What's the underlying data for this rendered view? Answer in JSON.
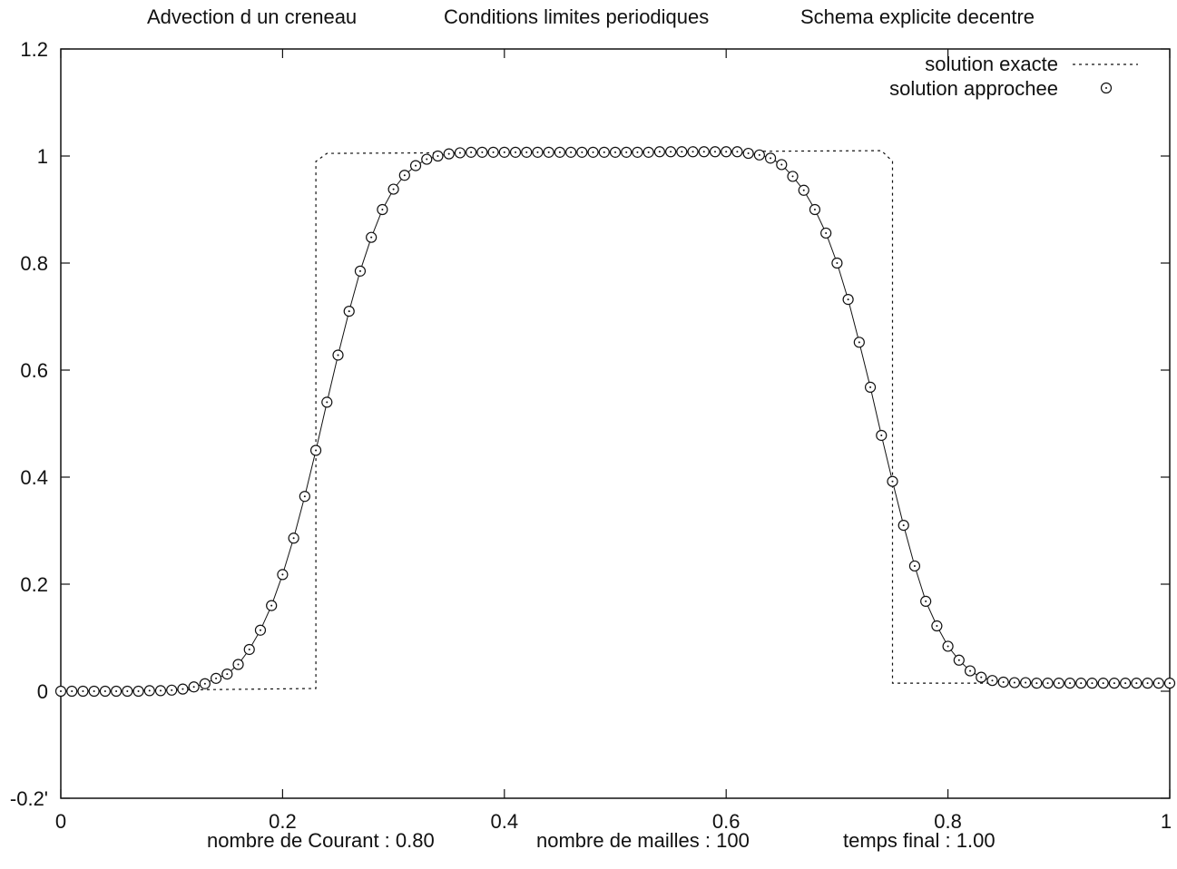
{
  "title_parts": [
    "Advection d un creneau",
    "Conditions limites periodiques",
    "Schema  explicite decentre"
  ],
  "info": {
    "courant_label": "nombre de Courant :",
    "courant_value": "0.80",
    "mailles_label": "nombre de mailles :",
    "mailles_value": "100",
    "temps_label": "temps final  :",
    "temps_value": "1.00"
  },
  "chart_data": {
    "type": "line",
    "xlim": [
      0,
      1
    ],
    "ylim": [
      -0.2,
      1.2
    ],
    "x_ticks": [
      0,
      0.2,
      0.4,
      0.6,
      0.8,
      1
    ],
    "x_tick_labels": [
      "0",
      "0.2",
      "0.4",
      "0.6",
      "0.8",
      "1"
    ],
    "y_ticks": [
      -0.2,
      0,
      0.2,
      0.4,
      0.6,
      0.8,
      1,
      1.2
    ],
    "y_tick_labels": [
      "-0.2'",
      "0",
      "0.2",
      "0.4",
      "0.6",
      "0.8",
      "1",
      "1.2"
    ],
    "grid": false,
    "legend_position": "top-right",
    "colors": {
      "line": "#111111",
      "marker": "#111111"
    },
    "series": [
      {
        "name": "solution exacte",
        "style": "dotted",
        "x": [
          0,
          0.23,
          0.23,
          0.24,
          0.74,
          0.75,
          0.75,
          1
        ],
        "y": [
          0,
          0.005,
          0.99,
          1.005,
          1.01,
          0.99,
          0.015,
          0.015
        ]
      },
      {
        "name": "solution approchee",
        "style": "markers-circle",
        "x": [
          0,
          0.01,
          0.02,
          0.03,
          0.04,
          0.05,
          0.06,
          0.07,
          0.08,
          0.09,
          0.1,
          0.11,
          0.12,
          0.13,
          0.14,
          0.15,
          0.16,
          0.17,
          0.18,
          0.19,
          0.2,
          0.21,
          0.22,
          0.23,
          0.24,
          0.25,
          0.26,
          0.27,
          0.28,
          0.29,
          0.3,
          0.31,
          0.32,
          0.33,
          0.34,
          0.35,
          0.36,
          0.37,
          0.38,
          0.39,
          0.4,
          0.41,
          0.42,
          0.43,
          0.44,
          0.45,
          0.46,
          0.47,
          0.48,
          0.49,
          0.5,
          0.51,
          0.52,
          0.53,
          0.54,
          0.55,
          0.56,
          0.57,
          0.58,
          0.59,
          0.6,
          0.61,
          0.62,
          0.63,
          0.64,
          0.65,
          0.66,
          0.67,
          0.68,
          0.69,
          0.7,
          0.71,
          0.72,
          0.73,
          0.74,
          0.75,
          0.76,
          0.77,
          0.78,
          0.79,
          0.8,
          0.81,
          0.82,
          0.83,
          0.84,
          0.85,
          0.86,
          0.87,
          0.88,
          0.89,
          0.9,
          0.91,
          0.92,
          0.93,
          0.94,
          0.95,
          0.96,
          0.97,
          0.98,
          0.99,
          1
        ],
        "y": [
          0,
          0,
          0,
          0,
          0,
          0,
          0,
          0,
          0.001,
          0.001,
          0.002,
          0.004,
          0.008,
          0.014,
          0.024,
          0.032,
          0.05,
          0.078,
          0.114,
          0.16,
          0.218,
          0.286,
          0.364,
          0.45,
          0.54,
          0.628,
          0.71,
          0.785,
          0.848,
          0.9,
          0.938,
          0.964,
          0.982,
          0.994,
          1.0,
          1.004,
          1.006,
          1.007,
          1.007,
          1.007,
          1.007,
          1.007,
          1.007,
          1.007,
          1.007,
          1.007,
          1.007,
          1.007,
          1.007,
          1.007,
          1.007,
          1.007,
          1.007,
          1.007,
          1.008,
          1.008,
          1.008,
          1.008,
          1.008,
          1.008,
          1.008,
          1.008,
          1.005,
          1.002,
          0.996,
          0.984,
          0.962,
          0.936,
          0.9,
          0.856,
          0.8,
          0.732,
          0.652,
          0.568,
          0.478,
          0.392,
          0.31,
          0.234,
          0.168,
          0.122,
          0.084,
          0.058,
          0.038,
          0.026,
          0.02,
          0.017,
          0.016,
          0.016,
          0.015,
          0.015,
          0.015,
          0.015,
          0.015,
          0.015,
          0.015,
          0.015,
          0.015,
          0.015,
          0.015,
          0.015,
          0.015
        ]
      }
    ]
  }
}
